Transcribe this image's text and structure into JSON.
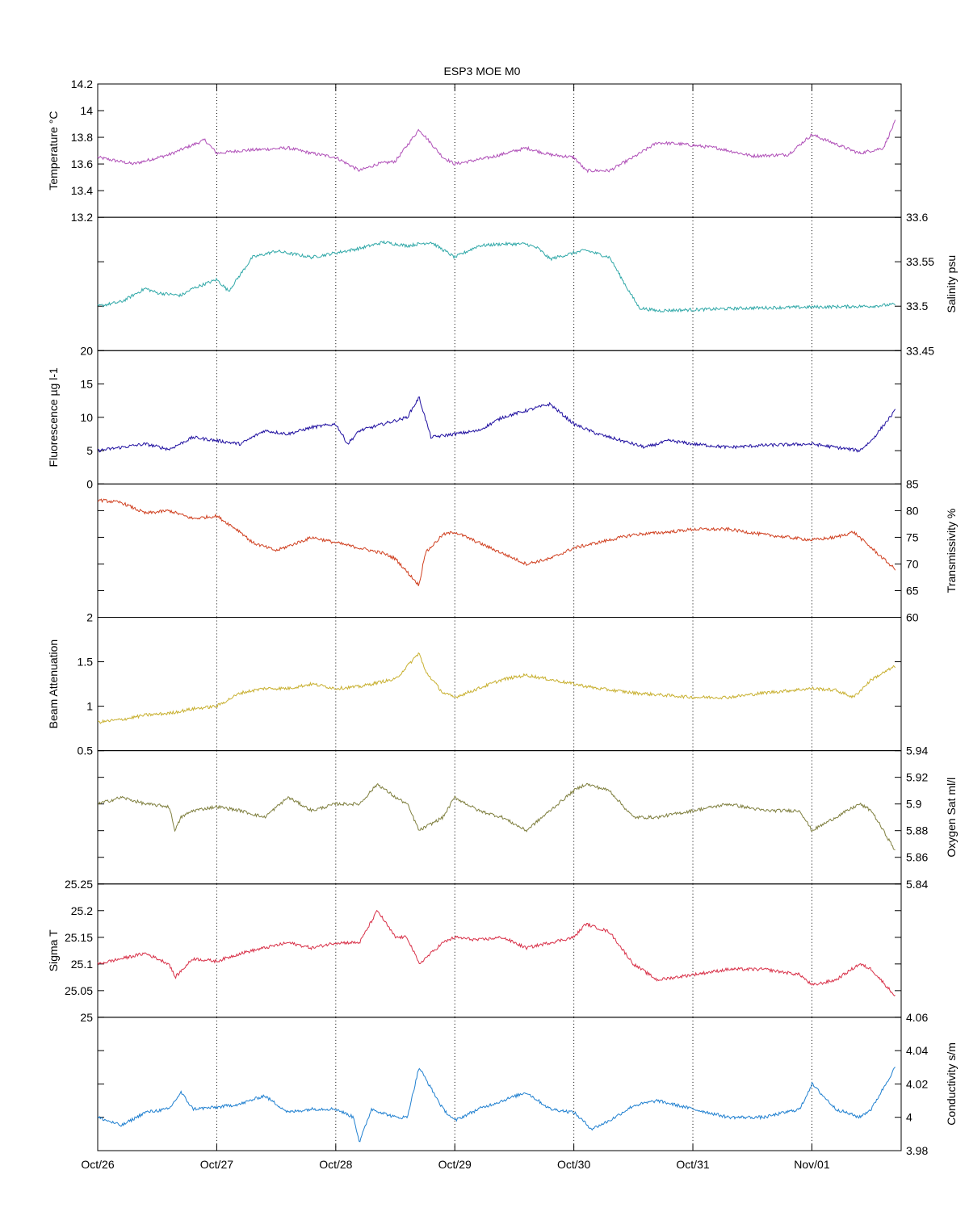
{
  "chart_data": {
    "type": "line",
    "title": "ESP3 MOE   M0",
    "x_axis": {
      "range": [
        "2011-10-26T00:00",
        "2011-11-01T18:00"
      ],
      "tick_labels": [
        "Oct/26",
        "Oct/27",
        "Oct/28",
        "Oct/29",
        "Oct/30",
        "Oct/31",
        "Nov/01"
      ],
      "tick_dates": [
        "2011-10-26",
        "2011-10-27",
        "2011-10-28",
        "2011-10-29",
        "2011-10-30",
        "2011-10-31",
        "2011-11-01"
      ],
      "grid": "dotted vertical"
    },
    "panels": [
      {
        "ylabel": "Temperature °C",
        "label_side": "left",
        "color": "#b050b8",
        "ylim": [
          13.2,
          14.2
        ],
        "tick_side": "left",
        "ticks": [
          13.2,
          13.4,
          13.6,
          13.8,
          14,
          14.2
        ],
        "tick_labels": [
          "13.2",
          "13.4",
          "13.6",
          "13.8",
          "14",
          "14.2"
        ],
        "x": [
          0,
          0.3,
          0.6,
          0.9,
          1.0,
          1.2,
          1.6,
          1.8,
          2.0,
          2.2,
          2.35,
          2.5,
          2.7,
          2.9,
          3.0,
          3.3,
          3.6,
          3.8,
          4.0,
          4.1,
          4.3,
          4.5,
          4.7,
          4.9,
          5.2,
          5.5,
          5.8,
          6.0,
          6.2,
          6.4,
          6.6,
          6.7
        ],
        "values": [
          13.65,
          13.6,
          13.67,
          13.78,
          13.68,
          13.7,
          13.72,
          13.68,
          13.65,
          13.55,
          13.6,
          13.62,
          13.86,
          13.65,
          13.6,
          13.65,
          13.72,
          13.67,
          13.65,
          13.55,
          13.55,
          13.65,
          13.76,
          13.75,
          13.72,
          13.66,
          13.67,
          13.82,
          13.75,
          13.68,
          13.72,
          13.92
        ]
      },
      {
        "ylabel": "Salinity psu",
        "label_side": "right",
        "color": "#30a8a8",
        "ylim": [
          33.45,
          33.6
        ],
        "tick_side": "right",
        "ticks": [
          33.45,
          33.5,
          33.55,
          33.6
        ],
        "tick_labels": [
          "33.45",
          "33.5",
          "33.55",
          "33.6"
        ],
        "x": [
          0,
          0.2,
          0.4,
          0.5,
          0.7,
          0.8,
          1.0,
          1.1,
          1.3,
          1.5,
          1.8,
          2.0,
          2.2,
          2.4,
          2.6,
          2.8,
          3.0,
          3.2,
          3.4,
          3.6,
          3.7,
          3.8,
          4.0,
          4.1,
          4.3,
          4.45,
          4.55,
          4.7,
          5.0,
          5.5,
          6.0,
          6.5,
          6.7
        ],
        "values": [
          33.5,
          33.505,
          33.52,
          33.515,
          33.512,
          33.52,
          33.53,
          33.517,
          33.555,
          33.562,
          33.555,
          33.56,
          33.565,
          33.572,
          33.568,
          33.572,
          33.555,
          33.568,
          33.57,
          33.57,
          33.565,
          33.553,
          33.56,
          33.563,
          33.555,
          33.52,
          33.498,
          33.495,
          33.496,
          33.498,
          33.499,
          33.5,
          33.502
        ]
      },
      {
        "ylabel": "Fluorescence µg l-1",
        "label_side": "left",
        "color": "#2010a0",
        "ylim": [
          0,
          20
        ],
        "tick_side": "left",
        "ticks": [
          0,
          5,
          10,
          15,
          20
        ],
        "tick_labels": [
          "0",
          "5",
          "10",
          "15",
          "20"
        ],
        "x": [
          0,
          0.2,
          0.4,
          0.6,
          0.8,
          1.0,
          1.2,
          1.4,
          1.6,
          1.8,
          2.0,
          2.1,
          2.2,
          2.4,
          2.6,
          2.7,
          2.8,
          3.0,
          3.2,
          3.4,
          3.6,
          3.8,
          4.0,
          4.2,
          4.4,
          4.6,
          4.8,
          5.0,
          5.3,
          5.6,
          6.0,
          6.2,
          6.4,
          6.5,
          6.7
        ],
        "values": [
          5,
          5.5,
          6,
          5.2,
          7,
          6.5,
          6,
          8,
          7.5,
          8.5,
          9,
          6,
          8,
          9,
          10,
          13,
          7,
          7.5,
          8,
          10,
          11,
          12,
          9,
          7.5,
          6.5,
          5.5,
          6.5,
          6,
          5.5,
          5.8,
          6,
          5.5,
          5,
          6.5,
          11
        ]
      },
      {
        "ylabel": "Transmissivity %",
        "label_side": "right",
        "color": "#d04020",
        "ylim": [
          60,
          85
        ],
        "tick_side": "right",
        "ticks": [
          60,
          65,
          70,
          75,
          80,
          85
        ],
        "tick_labels": [
          "60",
          "65",
          "70",
          "75",
          "80",
          "85"
        ],
        "x": [
          0,
          0.2,
          0.4,
          0.6,
          0.8,
          1.0,
          1.2,
          1.3,
          1.5,
          1.8,
          2.0,
          2.2,
          2.4,
          2.5,
          2.7,
          2.75,
          2.9,
          3.0,
          3.2,
          3.4,
          3.6,
          3.8,
          4.0,
          4.2,
          4.5,
          4.8,
          5.0,
          5.3,
          5.6,
          6.0,
          6.2,
          6.35,
          6.5,
          6.7
        ],
        "values": [
          82,
          81.5,
          79.5,
          80,
          78.5,
          79,
          76,
          74,
          72.5,
          75,
          74,
          73,
          72,
          71,
          66,
          72,
          75.5,
          76,
          74,
          72,
          70,
          71,
          73,
          74,
          75.5,
          76,
          76.5,
          76.5,
          75.5,
          74.5,
          75,
          76,
          73,
          69
        ]
      },
      {
        "ylabel": "Beam Attenuation",
        "label_side": "left",
        "color": "#c8b030",
        "ylim": [
          0.5,
          2
        ],
        "tick_side": "left",
        "ticks": [
          0.5,
          1,
          1.5,
          2
        ],
        "tick_labels": [
          "0.5",
          "1",
          "1.5",
          "2"
        ],
        "x": [
          0,
          0.2,
          0.4,
          0.6,
          0.8,
          1.0,
          1.2,
          1.4,
          1.6,
          1.8,
          2.0,
          2.2,
          2.4,
          2.5,
          2.7,
          2.75,
          2.9,
          3.0,
          3.2,
          3.4,
          3.6,
          3.8,
          4.0,
          4.2,
          4.5,
          4.8,
          5.0,
          5.3,
          5.6,
          6.0,
          6.2,
          6.35,
          6.5,
          6.7
        ],
        "values": [
          0.82,
          0.85,
          0.9,
          0.92,
          0.97,
          1.0,
          1.15,
          1.2,
          1.2,
          1.25,
          1.2,
          1.22,
          1.28,
          1.3,
          1.6,
          1.4,
          1.15,
          1.1,
          1.2,
          1.3,
          1.35,
          1.3,
          1.25,
          1.2,
          1.15,
          1.12,
          1.1,
          1.1,
          1.15,
          1.2,
          1.18,
          1.1,
          1.3,
          1.45
        ]
      },
      {
        "ylabel": "Oxygen Sat ml/l",
        "label_side": "right",
        "color": "#808040",
        "ylim": [
          5.84,
          5.94
        ],
        "tick_side": "right",
        "ticks": [
          5.84,
          5.86,
          5.88,
          5.9,
          5.92,
          5.94
        ],
        "tick_labels": [
          "5.84",
          "5.86",
          "5.88",
          "5.9",
          "5.92",
          "5.94"
        ],
        "x": [
          0,
          0.2,
          0.4,
          0.6,
          0.65,
          0.7,
          0.8,
          1.0,
          1.2,
          1.4,
          1.6,
          1.8,
          2.0,
          2.2,
          2.35,
          2.5,
          2.6,
          2.7,
          2.9,
          3.0,
          3.2,
          3.4,
          3.6,
          3.8,
          4.0,
          4.1,
          4.3,
          4.5,
          4.7,
          5.0,
          5.3,
          5.6,
          5.9,
          6.0,
          6.2,
          6.4,
          6.5,
          6.7
        ],
        "values": [
          5.9,
          5.905,
          5.9,
          5.898,
          5.88,
          5.89,
          5.895,
          5.898,
          5.895,
          5.89,
          5.905,
          5.895,
          5.9,
          5.9,
          5.915,
          5.905,
          5.9,
          5.88,
          5.89,
          5.905,
          5.895,
          5.89,
          5.88,
          5.895,
          5.91,
          5.915,
          5.91,
          5.89,
          5.89,
          5.895,
          5.9,
          5.895,
          5.895,
          5.88,
          5.89,
          5.9,
          5.895,
          5.865
        ]
      },
      {
        "ylabel": "Sigma T",
        "label_side": "left",
        "color": "#d83048",
        "ylim": [
          25,
          25.25
        ],
        "tick_side": "left",
        "ticks": [
          25,
          25.05,
          25.1,
          25.15,
          25.2,
          25.25
        ],
        "tick_labels": [
          "25",
          "25.05",
          "25.1",
          "25.15",
          "25.2",
          "25.25"
        ],
        "x": [
          0,
          0.2,
          0.4,
          0.6,
          0.65,
          0.8,
          1.0,
          1.2,
          1.4,
          1.6,
          1.8,
          2.0,
          2.2,
          2.35,
          2.5,
          2.6,
          2.7,
          2.9,
          3.0,
          3.2,
          3.4,
          3.6,
          3.8,
          4.0,
          4.1,
          4.3,
          4.5,
          4.7,
          5.0,
          5.3,
          5.6,
          5.9,
          6.0,
          6.2,
          6.4,
          6.5,
          6.7
        ],
        "values": [
          25.1,
          25.11,
          25.12,
          25.1,
          25.075,
          25.11,
          25.105,
          25.12,
          25.13,
          25.14,
          25.13,
          25.14,
          25.14,
          25.2,
          25.15,
          25.15,
          25.1,
          25.14,
          25.15,
          25.145,
          25.15,
          25.13,
          25.14,
          25.15,
          25.175,
          25.16,
          25.1,
          25.07,
          25.08,
          25.09,
          25.09,
          25.08,
          25.06,
          25.07,
          25.1,
          25.09,
          25.04
        ]
      },
      {
        "ylabel": "Conductivity s/m",
        "label_side": "right",
        "color": "#2080d0",
        "ylim": [
          3.98,
          4.06
        ],
        "tick_side": "right",
        "ticks": [
          3.98,
          4,
          4.02,
          4.04,
          4.06
        ],
        "tick_labels": [
          "3.98",
          "4",
          "4.02",
          "4.04",
          "4.06"
        ],
        "x": [
          0,
          0.2,
          0.4,
          0.6,
          0.7,
          0.8,
          1.0,
          1.2,
          1.4,
          1.6,
          1.8,
          2.0,
          2.15,
          2.2,
          2.3,
          2.5,
          2.6,
          2.7,
          2.9,
          3.0,
          3.2,
          3.4,
          3.6,
          3.8,
          4.0,
          4.15,
          4.3,
          4.5,
          4.7,
          5.0,
          5.3,
          5.6,
          5.9,
          6.0,
          6.2,
          6.4,
          6.5,
          6.7
        ],
        "values": [
          4.0,
          3.995,
          4.003,
          4.005,
          4.015,
          4.005,
          4.006,
          4.008,
          4.013,
          4.003,
          4.005,
          4.005,
          4.0,
          3.985,
          4.005,
          4.0,
          4.0,
          4.03,
          4.005,
          3.998,
          4.005,
          4.01,
          4.015,
          4.005,
          4.003,
          3.993,
          3.998,
          4.007,
          4.01,
          4.005,
          4.0,
          4.0,
          4.005,
          4.02,
          4.005,
          4.0,
          4.005,
          4.03
        ]
      }
    ]
  }
}
